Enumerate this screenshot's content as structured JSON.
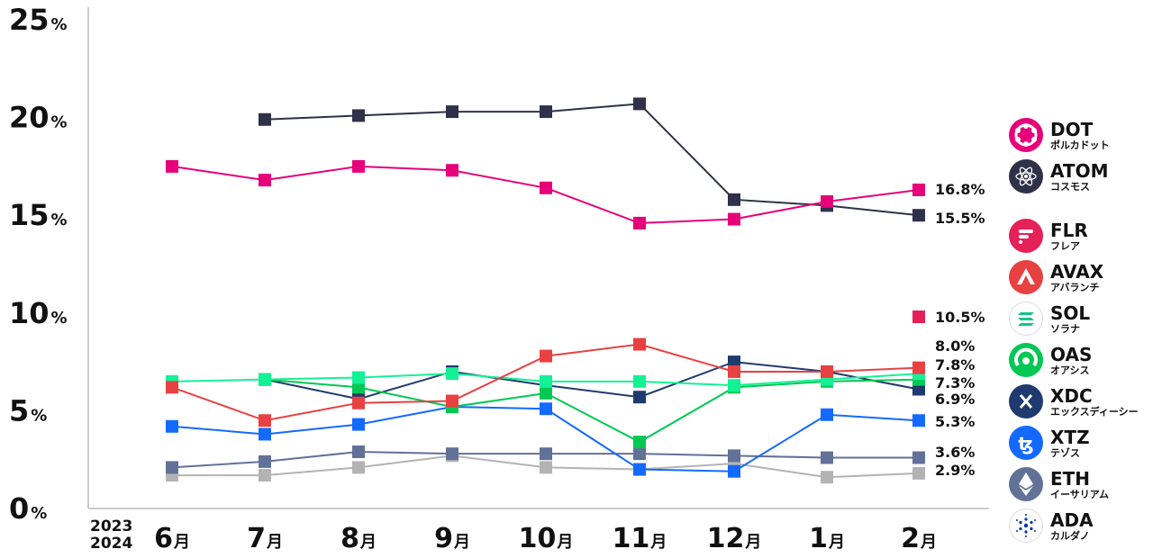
{
  "chart_data": {
    "type": "line",
    "year_labels": [
      "2023",
      "2024"
    ],
    "categories": [
      "6月",
      "7月",
      "8月",
      "9月",
      "10月",
      "11月",
      "12月",
      "1月",
      "2月"
    ],
    "ylim": [
      0,
      25
    ],
    "yticks": [
      0,
      5,
      10,
      15,
      20,
      25
    ],
    "ytick_suffix": "%",
    "series": [
      {
        "name": "DOT",
        "name_ja": "ポルカドット",
        "color": "#e6007a",
        "values": [
          17.5,
          16.8,
          17.5,
          17.3,
          16.4,
          14.6,
          14.8,
          15.7,
          16.3
        ],
        "end_label": "16.8%"
      },
      {
        "name": "ATOM",
        "name_ja": "コスモス",
        "color": "#2e3148",
        "values": [
          null,
          19.9,
          20.1,
          20.3,
          20.3,
          20.7,
          15.8,
          15.5,
          15.0
        ],
        "end_label": "15.5%"
      },
      {
        "name": "FLR",
        "name_ja": "フレア",
        "color": "#e62058",
        "values": [
          null,
          null,
          null,
          null,
          null,
          null,
          null,
          null,
          null
        ],
        "end_label": "10.5%",
        "end_value": 10.0
      },
      {
        "name": "AVAX",
        "name_ja": "アバランチ",
        "color": "#e84142",
        "values": [
          6.2,
          4.5,
          5.4,
          5.5,
          7.8,
          8.4,
          7.0,
          7.0,
          7.2
        ],
        "end_label": "7.8%"
      },
      {
        "name": "SOL",
        "name_ja": "ソラナ",
        "color": "#14f195",
        "values": [
          6.5,
          6.6,
          6.7,
          6.9,
          6.5,
          6.5,
          6.3,
          6.6,
          6.9
        ],
        "end_label": "7.3%"
      },
      {
        "name": "OAS",
        "name_ja": "オアシス",
        "color": "#00c853",
        "values": [
          null,
          6.6,
          6.2,
          5.2,
          5.9,
          3.4,
          6.2,
          6.5,
          6.6
        ],
        "end_label": "6.9%"
      },
      {
        "name": "XDC",
        "name_ja": "エックスディーシー",
        "color": "#1f3a6e",
        "values": [
          null,
          6.6,
          5.6,
          7.0,
          6.3,
          5.7,
          7.5,
          7.0,
          6.1
        ],
        "end_label": "8.0%"
      },
      {
        "name": "XTZ",
        "name_ja": "テゾス",
        "color": "#1469ff",
        "values": [
          4.2,
          3.8,
          4.3,
          5.2,
          5.1,
          2.0,
          1.9,
          4.8,
          4.5
        ],
        "end_label": "5.3%"
      },
      {
        "name": "ETH",
        "name_ja": "イーサリアム",
        "color": "#627197",
        "values": [
          2.1,
          2.4,
          2.9,
          2.8,
          2.8,
          2.8,
          2.7,
          2.6,
          2.6
        ],
        "end_label": "3.6%"
      },
      {
        "name": "ADA",
        "name_ja": "カルダノ",
        "color": "#b3b3b3",
        "values": [
          1.7,
          1.7,
          2.1,
          2.7,
          2.1,
          2.0,
          2.3,
          1.6,
          1.8
        ],
        "end_label": "2.9%"
      }
    ],
    "grid": false,
    "legend_position": "right"
  }
}
